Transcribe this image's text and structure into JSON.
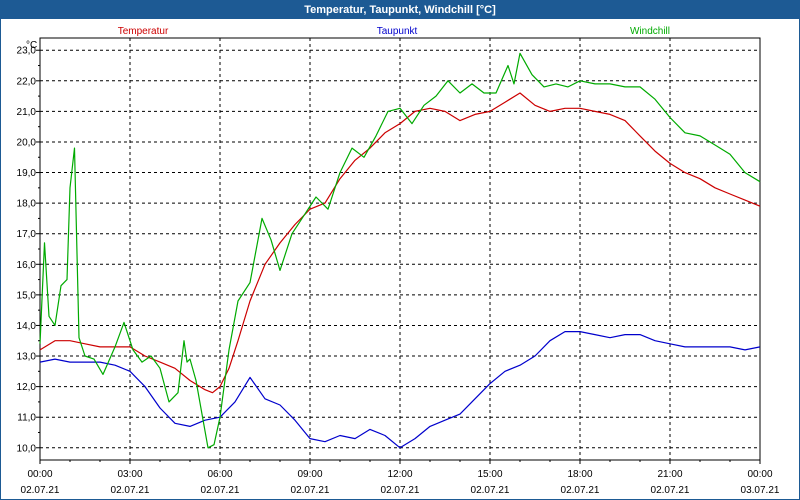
{
  "window": {
    "title": "Temperatur, Taupunkt, Windchill [°C]"
  },
  "chart_data": {
    "type": "line",
    "title": "Temperatur, Taupunkt, Windchill [°C]",
    "ylabel": "°C",
    "ylim": [
      9.6,
      23.4
    ],
    "yticks": [
      "10,0",
      "11,0",
      "12,0",
      "13,0",
      "14,0",
      "15,0",
      "16,0",
      "17,0",
      "18,0",
      "19,0",
      "20,0",
      "21,0",
      "22,0",
      "23,0"
    ],
    "xlim": [
      0,
      24
    ],
    "xticks": [
      {
        "time": "00:00",
        "date": "02.07.21"
      },
      {
        "time": "03:00",
        "date": "02.07.21"
      },
      {
        "time": "06:00",
        "date": "02.07.21"
      },
      {
        "time": "09:00",
        "date": "02.07.21"
      },
      {
        "time": "12:00",
        "date": "02.07.21"
      },
      {
        "time": "15:00",
        "date": "02.07.21"
      },
      {
        "time": "18:00",
        "date": "02.07.21"
      },
      {
        "time": "21:00",
        "date": "02.07.21"
      },
      {
        "time": "00:00",
        "date": "03.07.21"
      }
    ],
    "grid": true,
    "series": [
      {
        "name": "Temperatur",
        "color": "#cc0000",
        "x": [
          0,
          0.5,
          1,
          1.5,
          2,
          2.5,
          3,
          3.5,
          4,
          4.5,
          5,
          5.5,
          5.75,
          6,
          6.3,
          6.6,
          7,
          7.5,
          8,
          8.5,
          9,
          9.5,
          10,
          10.5,
          11,
          11.5,
          12,
          12.5,
          13,
          13.5,
          14,
          14.5,
          15,
          15.5,
          16,
          16.5,
          17,
          17.5,
          18,
          18.5,
          19,
          19.5,
          20,
          20.5,
          21,
          21.5,
          22,
          22.5,
          23,
          23.5,
          24
        ],
        "y": [
          13.2,
          13.5,
          13.5,
          13.4,
          13.3,
          13.3,
          13.3,
          13.0,
          12.8,
          12.6,
          12.2,
          11.9,
          11.8,
          12.0,
          12.6,
          13.5,
          14.8,
          16.0,
          16.7,
          17.3,
          17.8,
          18.0,
          18.8,
          19.4,
          19.8,
          20.3,
          20.6,
          21.0,
          21.1,
          21.0,
          20.7,
          20.9,
          21.0,
          21.3,
          21.6,
          21.2,
          21.0,
          21.1,
          21.1,
          21.0,
          20.9,
          20.7,
          20.2,
          19.7,
          19.3,
          19.0,
          18.8,
          18.5,
          18.3,
          18.1,
          17.9
        ]
      },
      {
        "name": "Taupunkt",
        "color": "#0000cc",
        "x": [
          0,
          0.5,
          1,
          1.5,
          2,
          2.5,
          3,
          3.5,
          4,
          4.5,
          5,
          5.5,
          6,
          6.5,
          7,
          7.5,
          8,
          8.5,
          9,
          9.5,
          10,
          10.5,
          11,
          11.5,
          12,
          12.5,
          13,
          13.5,
          14,
          14.5,
          15,
          15.5,
          16,
          16.5,
          17,
          17.5,
          18,
          18.5,
          19,
          19.5,
          20,
          20.5,
          21,
          21.5,
          22,
          22.5,
          23,
          23.5,
          24
        ],
        "y": [
          12.8,
          12.9,
          12.8,
          12.8,
          12.8,
          12.7,
          12.5,
          12.0,
          11.3,
          10.8,
          10.7,
          10.9,
          11.0,
          11.5,
          12.3,
          11.6,
          11.4,
          10.9,
          10.3,
          10.2,
          10.4,
          10.3,
          10.6,
          10.4,
          10.0,
          10.3,
          10.7,
          10.9,
          11.1,
          11.6,
          12.1,
          12.5,
          12.7,
          13.0,
          13.5,
          13.8,
          13.8,
          13.7,
          13.6,
          13.7,
          13.7,
          13.5,
          13.4,
          13.3,
          13.3,
          13.3,
          13.3,
          13.2,
          13.3
        ]
      },
      {
        "name": "Windchill",
        "color": "#00aa00",
        "x": [
          0,
          0.15,
          0.3,
          0.5,
          0.7,
          0.9,
          1.0,
          1.15,
          1.3,
          1.5,
          1.8,
          2.1,
          2.5,
          2.8,
          3.1,
          3.4,
          3.7,
          4.0,
          4.3,
          4.6,
          4.8,
          4.9,
          5.0,
          5.2,
          5.4,
          5.6,
          5.8,
          6.0,
          6.3,
          6.6,
          7.0,
          7.4,
          7.7,
          8.0,
          8.4,
          8.8,
          9.2,
          9.6,
          10.0,
          10.4,
          10.8,
          11.2,
          11.6,
          12.0,
          12.4,
          12.8,
          13.2,
          13.6,
          14.0,
          14.4,
          14.8,
          15.2,
          15.6,
          15.8,
          16.0,
          16.4,
          16.8,
          17.2,
          17.6,
          18.0,
          18.5,
          19.0,
          19.5,
          20.0,
          20.5,
          21.0,
          21.5,
          22.0,
          22.5,
          23.0,
          23.5,
          24.0
        ],
        "y": [
          13.4,
          16.7,
          14.3,
          14.0,
          15.3,
          15.5,
          18.5,
          19.8,
          13.6,
          13.0,
          12.9,
          12.4,
          13.3,
          14.1,
          13.2,
          12.8,
          13.0,
          12.6,
          11.5,
          11.8,
          13.5,
          12.8,
          12.9,
          12.2,
          11.1,
          10.0,
          10.1,
          11.0,
          13.2,
          14.8,
          15.4,
          17.5,
          16.8,
          15.8,
          17.0,
          17.6,
          18.2,
          17.8,
          19.0,
          19.8,
          19.5,
          20.2,
          21.0,
          21.1,
          20.6,
          21.2,
          21.5,
          22.0,
          21.6,
          21.9,
          21.6,
          21.6,
          22.5,
          21.9,
          22.9,
          22.2,
          21.8,
          21.9,
          21.8,
          22.0,
          21.9,
          21.9,
          21.8,
          21.8,
          21.4,
          20.8,
          20.3,
          20.2,
          19.9,
          19.6,
          19.0,
          18.7
        ]
      }
    ]
  }
}
